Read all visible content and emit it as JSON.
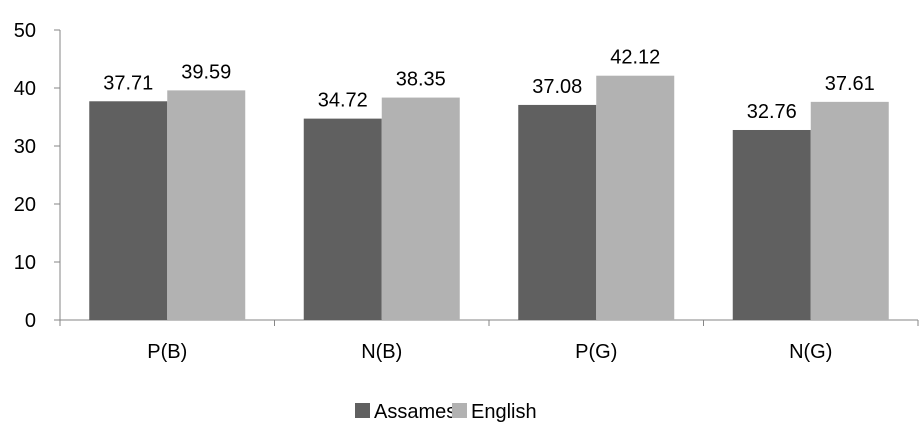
{
  "chart_data": {
    "type": "bar",
    "title": "",
    "xlabel": "",
    "ylabel": "",
    "categories": [
      "P(B)",
      "N(B)",
      "P(G)",
      "N(G)"
    ],
    "series": [
      {
        "name": "Assamese",
        "values": [
          37.71,
          34.72,
          37.08,
          32.76
        ],
        "color": "#606060"
      },
      {
        "name": "English",
        "values": [
          39.59,
          38.35,
          42.12,
          37.61
        ],
        "color": "#b2b2b2"
      }
    ],
    "ylim": [
      0,
      50
    ],
    "yticks": [
      "0",
      "10",
      "20",
      "30",
      "40",
      "50"
    ],
    "grid": false,
    "legend_position": "bottom"
  }
}
